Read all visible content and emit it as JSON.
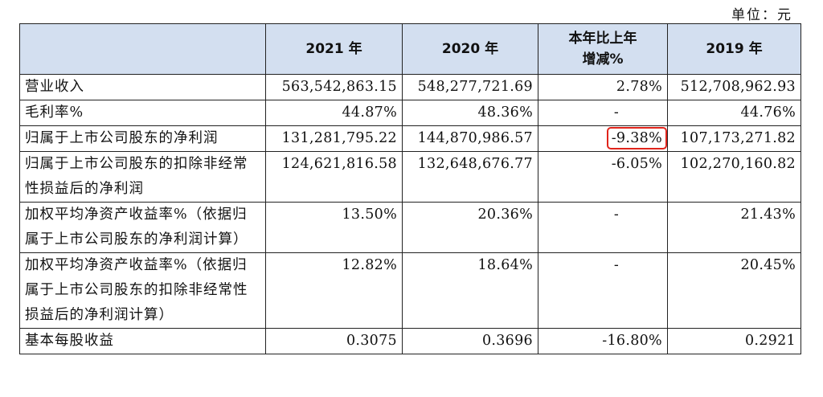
{
  "unit_label": "单位：元",
  "headers": [
    "",
    "2021 年",
    "2020 年",
    "本年比上年增减%",
    "2019 年"
  ],
  "rows": [
    {
      "label": "营业收入",
      "v2021": "563,542,863.15",
      "v2020": "548,277,721.69",
      "change": "2.78%",
      "v2019": "512,708,962.93"
    },
    {
      "label": "毛利率%",
      "v2021": "44.87%",
      "v2020": "48.36%",
      "change": "-",
      "v2019": "44.76%"
    },
    {
      "label": "归属于上市公司股东的净利润",
      "v2021": "131,281,795.22",
      "v2020": "144,870,986.57",
      "change": "-9.38%",
      "v2019": "107,173,271.82"
    },
    {
      "label": "归属于上市公司股东的扣除非经常性损益后的净利润",
      "v2021": "124,621,816.58",
      "v2020": "132,648,676.77",
      "change": "-6.05%",
      "v2019": "102,270,160.82"
    },
    {
      "label": "加权平均净资产收益率%（依据归属于上市公司股东的净利润计算）",
      "v2021": "13.50%",
      "v2020": "20.36%",
      "change": "-",
      "v2019": "21.43%"
    },
    {
      "label": "加权平均净资产收益率%（依据归属于上市公司股东的扣除非经常性损益后的净利润计算）",
      "v2021": "12.82%",
      "v2020": "18.64%",
      "change": "-",
      "v2019": "20.45%"
    },
    {
      "label": "基本每股收益",
      "v2021": "0.3075",
      "v2020": "0.3696",
      "change": "-16.80%",
      "v2019": "0.2921"
    }
  ],
  "highlight_color": "#e0241b",
  "header_bg_color": "#d3dff0"
}
